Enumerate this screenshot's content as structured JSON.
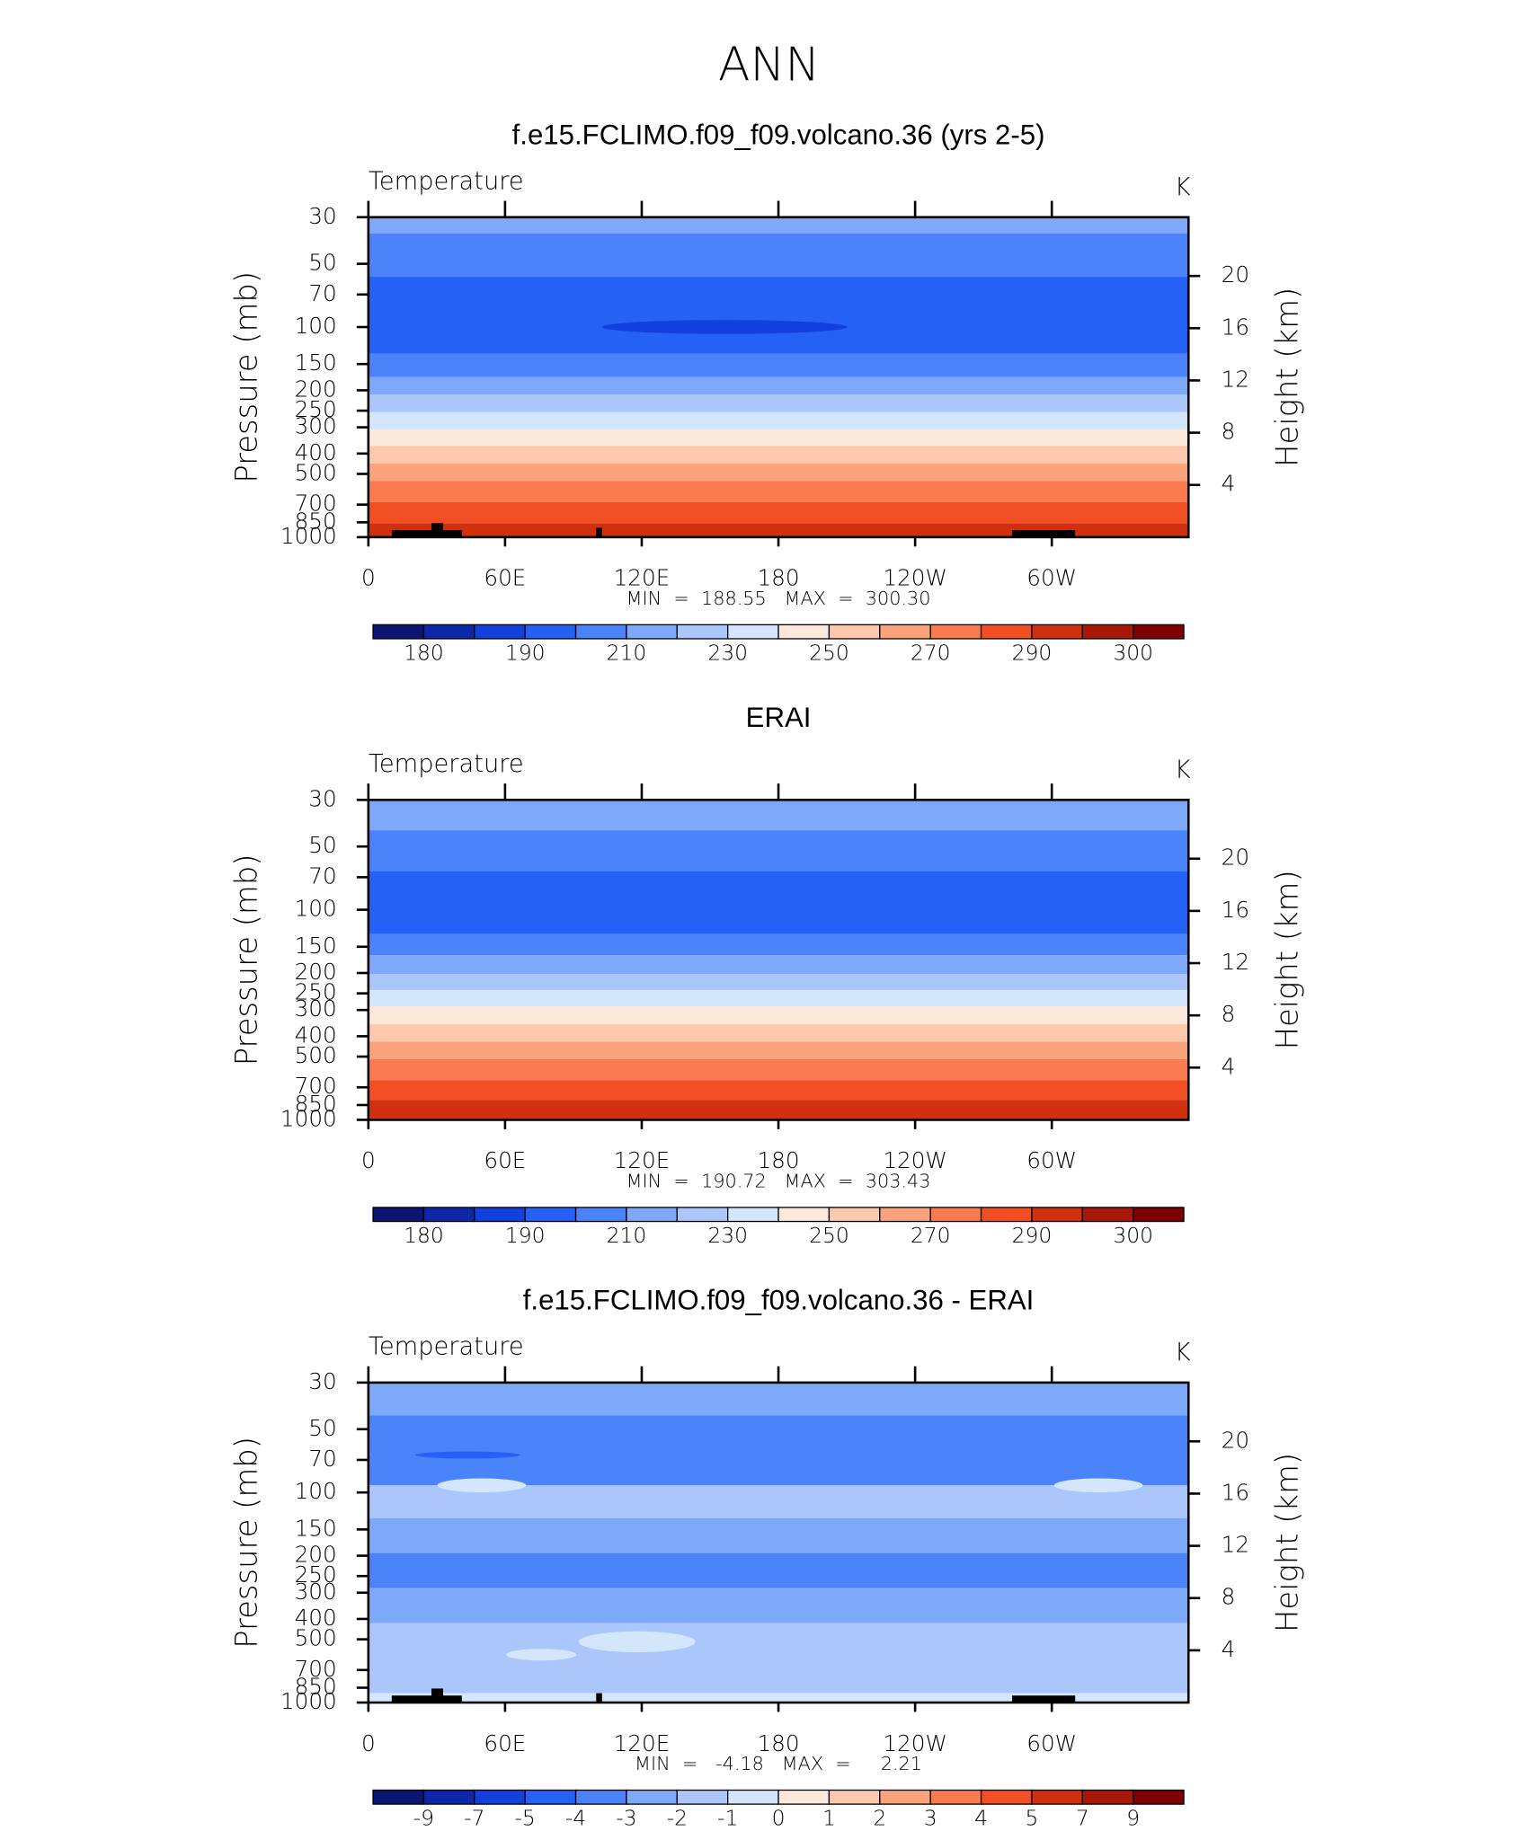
{
  "title": "ANN",
  "chart_data": [
    {
      "type": "contour",
      "title": "f.e15.FCLIMO.f09_f09.volcano.36 (yrs 2-5)",
      "subtitle": "Temperature",
      "units": "K",
      "ylabel": "Pressure (mb)",
      "y2label": "Height (km)",
      "ylim": [
        1000,
        30
      ],
      "log_y": true,
      "yticks": [
        30,
        50,
        70,
        100,
        150,
        200,
        250,
        300,
        400,
        500,
        700,
        850,
        1000
      ],
      "y2lim": [
        0,
        24.5
      ],
      "y2ticks": [
        4,
        8,
        12,
        16,
        20
      ],
      "xlim": [
        0,
        360
      ],
      "xticks": [
        0,
        {
          "value": 60,
          "label": "60E"
        },
        {
          "value": 120,
          "label": "120E"
        },
        180,
        {
          "value": 240,
          "label": "120W"
        },
        {
          "value": 300,
          "label": "60W"
        }
      ],
      "stats": "MIN  =  188.55   MAX  =  300.30",
      "colorbar": {
        "labels": [
          180,
          190,
          210,
          230,
          250,
          270,
          290,
          300
        ],
        "colors": [
          "#0b1572",
          "#0c27a8",
          "#1140dc",
          "#2461f4",
          "#4a83fa",
          "#7ea8f9",
          "#aac6fb",
          "#d4e6fb",
          "#fde9db",
          "#fcc9ad",
          "#fba47c",
          "#fa7b4f",
          "#f24f24",
          "#d1300f",
          "#a71808",
          "#7f0000"
        ]
      }
    },
    {
      "type": "contour",
      "title": "ERAI",
      "subtitle": "Temperature",
      "units": "K",
      "ylabel": "Pressure (mb)",
      "y2label": "Height (km)",
      "ylim": [
        1000,
        30
      ],
      "log_y": true,
      "yticks": [
        30,
        50,
        70,
        100,
        150,
        200,
        250,
        300,
        400,
        500,
        700,
        850,
        1000
      ],
      "y2lim": [
        0,
        24.5
      ],
      "y2ticks": [
        4,
        8,
        12,
        16,
        20
      ],
      "xlim": [
        0,
        360
      ],
      "xticks": [
        0,
        {
          "value": 60,
          "label": "60E"
        },
        {
          "value": 120,
          "label": "120E"
        },
        180,
        {
          "value": 240,
          "label": "120W"
        },
        {
          "value": 300,
          "label": "60W"
        }
      ],
      "stats": "MIN  =  190.72   MAX  =  303.43",
      "colorbar": {
        "labels": [
          180,
          190,
          210,
          230,
          250,
          270,
          290,
          300
        ],
        "colors": [
          "#0b1572",
          "#0c27a8",
          "#1140dc",
          "#2461f4",
          "#4a83fa",
          "#7ea8f9",
          "#aac6fb",
          "#d4e6fb",
          "#fde9db",
          "#fcc9ad",
          "#fba47c",
          "#fa7b4f",
          "#f24f24",
          "#d1300f",
          "#a71808",
          "#7f0000"
        ]
      }
    },
    {
      "type": "contour",
      "title": "f.e15.FCLIMO.f09_f09.volcano.36 - ERAI",
      "subtitle": "Temperature",
      "units": "K",
      "ylabel": "Pressure (mb)",
      "y2label": "Height (km)",
      "ylim": [
        1000,
        30
      ],
      "log_y": true,
      "yticks": [
        30,
        50,
        70,
        100,
        150,
        200,
        250,
        300,
        400,
        500,
        700,
        850,
        1000
      ],
      "y2lim": [
        0,
        24.5
      ],
      "y2ticks": [
        4,
        8,
        12,
        16,
        20
      ],
      "xlim": [
        0,
        360
      ],
      "xticks": [
        0,
        {
          "value": 60,
          "label": "60E"
        },
        {
          "value": 120,
          "label": "120E"
        },
        180,
        {
          "value": 240,
          "label": "120W"
        },
        {
          "value": 300,
          "label": "60W"
        }
      ],
      "stats": "MIN  =   -4.18   MAX  =     2.21",
      "colorbar": {
        "labels": [
          -9,
          -7,
          -5,
          -4,
          -3,
          -2,
          -1,
          0,
          1,
          2,
          3,
          4,
          5,
          7,
          9
        ],
        "colors": [
          "#0b1572",
          "#0c27a8",
          "#1140dc",
          "#2461f4",
          "#4a83fa",
          "#7ea8f9",
          "#aac6fb",
          "#d4e6fb",
          "#fde9db",
          "#fcc9ad",
          "#fba47c",
          "#fa7b4f",
          "#f24f24",
          "#d1300f",
          "#a71808",
          "#7f0000"
        ]
      }
    }
  ]
}
